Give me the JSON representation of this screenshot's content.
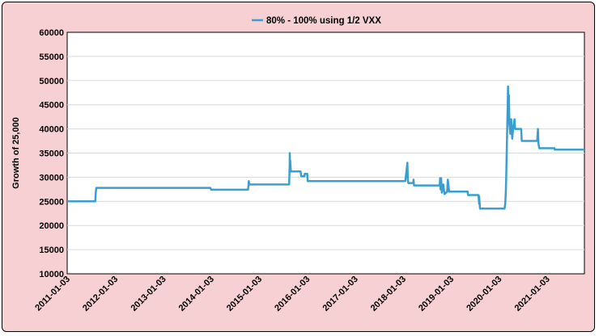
{
  "chart_data": {
    "type": "line",
    "title": "",
    "xlabel": "",
    "ylabel": "Growth of 25,000",
    "ylim": [
      10000,
      60000
    ],
    "yticks": [
      10000,
      15000,
      20000,
      25000,
      30000,
      35000,
      40000,
      45000,
      50000,
      55000,
      60000
    ],
    "xlim": [
      "2011-01-03",
      "2021-10-15"
    ],
    "xticks": [
      "2011-01-03",
      "2012-01-03",
      "2013-01-03",
      "2014-01-03",
      "2015-01-03",
      "2016-01-03",
      "2017-01-03",
      "2018-01-03",
      "2019-01-03",
      "2020-01-03",
      "2021-01-03"
    ],
    "grid": "horizontal",
    "legend": "top",
    "colors": {
      "background": "#f6d0d3",
      "plot_background": "#ffffff",
      "line": "#3a9fd0",
      "grid": "#d9d9d9"
    },
    "series": [
      {
        "name": "80% - 100% using 1/2 VXX",
        "points": [
          [
            "2011-01-03",
            25000
          ],
          [
            "2011-08-05",
            25000
          ],
          [
            "2011-08-08",
            26500
          ],
          [
            "2011-08-12",
            27800
          ],
          [
            "2012-01-03",
            27800
          ],
          [
            "2013-01-03",
            27800
          ],
          [
            "2013-12-28",
            27800
          ],
          [
            "2014-01-03",
            27400
          ],
          [
            "2014-10-10",
            27400
          ],
          [
            "2014-10-15",
            28500
          ],
          [
            "2014-10-17",
            29200
          ],
          [
            "2014-10-20",
            28500
          ],
          [
            "2015-08-20",
            28500
          ],
          [
            "2015-08-24",
            32800
          ],
          [
            "2015-08-25",
            35000
          ],
          [
            "2015-08-26",
            32000
          ],
          [
            "2015-08-28",
            33500
          ],
          [
            "2015-09-02",
            31200
          ],
          [
            "2015-11-15",
            31200
          ],
          [
            "2015-11-20",
            30200
          ],
          [
            "2015-12-14",
            30200
          ],
          [
            "2015-12-16",
            30700
          ],
          [
            "2016-01-05",
            30700
          ],
          [
            "2016-01-08",
            29200
          ],
          [
            "2017-01-03",
            29200
          ],
          [
            "2018-01-20",
            29200
          ],
          [
            "2018-02-05",
            33000
          ],
          [
            "2018-02-08",
            29500
          ],
          [
            "2018-02-12",
            28800
          ],
          [
            "2018-03-22",
            28800
          ],
          [
            "2018-03-24",
            29500
          ],
          [
            "2018-03-28",
            28300
          ],
          [
            "2018-10-10",
            28300
          ],
          [
            "2018-10-12",
            29800
          ],
          [
            "2018-10-15",
            27500
          ],
          [
            "2018-10-20",
            29800
          ],
          [
            "2018-10-25",
            26800
          ],
          [
            "2018-11-05",
            28500
          ],
          [
            "2018-11-15",
            26500
          ],
          [
            "2018-12-05",
            27000
          ],
          [
            "2018-12-10",
            29500
          ],
          [
            "2018-12-20",
            27000
          ],
          [
            "2019-01-03",
            27000
          ],
          [
            "2019-05-10",
            27000
          ],
          [
            "2019-05-13",
            26300
          ],
          [
            "2019-08-01",
            26300
          ],
          [
            "2019-08-05",
            24500
          ],
          [
            "2019-08-06",
            26000
          ],
          [
            "2019-08-12",
            23500
          ],
          [
            "2020-01-03",
            23500
          ],
          [
            "2020-02-15",
            23500
          ],
          [
            "2020-02-20",
            24500
          ],
          [
            "2020-02-25",
            27500
          ],
          [
            "2020-02-28",
            31000
          ],
          [
            "2020-03-03",
            36000
          ],
          [
            "2020-03-06",
            40000
          ],
          [
            "2020-03-09",
            44000
          ],
          [
            "2020-03-12",
            48800
          ],
          [
            "2020-03-16",
            43000
          ],
          [
            "2020-03-19",
            47000
          ],
          [
            "2020-03-23",
            41000
          ],
          [
            "2020-03-30",
            39000
          ],
          [
            "2020-04-06",
            42000
          ],
          [
            "2020-04-13",
            38000
          ],
          [
            "2020-04-20",
            40000
          ],
          [
            "2020-05-01",
            42000
          ],
          [
            "2020-05-05",
            40000
          ],
          [
            "2020-06-20",
            40000
          ],
          [
            "2020-06-25",
            37500
          ],
          [
            "2020-10-20",
            37500
          ],
          [
            "2020-10-26",
            40000
          ],
          [
            "2020-10-30",
            37000
          ],
          [
            "2020-11-05",
            36000
          ],
          [
            "2021-03-01",
            36000
          ],
          [
            "2021-03-03",
            35700
          ],
          [
            "2021-10-15",
            35700
          ]
        ]
      }
    ]
  }
}
